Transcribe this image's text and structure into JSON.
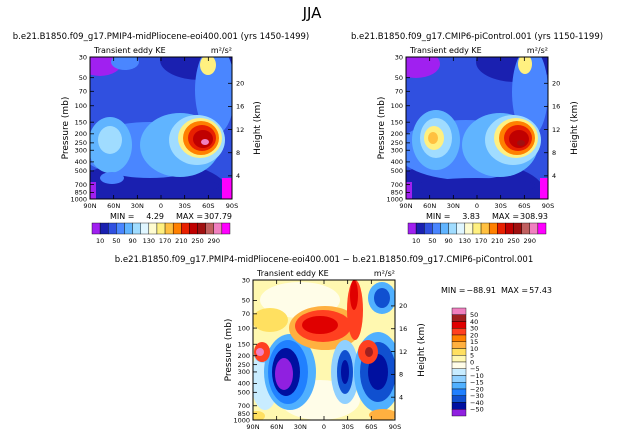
{
  "page": {
    "title": "JJA"
  },
  "chart_data": [
    {
      "type": "heatmap",
      "title": "b.e21.B1850.f09_g17.PMIP4-midPliocene-eoi400.001 (yrs 1450-1499)",
      "subtitle_left": "Transient eddy KE",
      "subtitle_right": "m²/s²",
      "xlabel": "",
      "ylabel": "Pressure (mb)",
      "ylabel_right": "Height (km)",
      "x_ticks": [
        "90N",
        "60N",
        "30N",
        "0",
        "30S",
        "60S",
        "90S"
      ],
      "y_ticks": [
        "30",
        "50",
        "70",
        "100",
        "150",
        "200",
        "250",
        "300",
        "400",
        "500",
        "700",
        "850",
        "1000"
      ],
      "y_right_ticks": [
        "20",
        "16",
        "12",
        "8",
        "4"
      ],
      "stats": {
        "min_label": "MIN =",
        "min": "4.29",
        "max_label": "MAX =",
        "max": "307.79"
      },
      "levels": [
        "10",
        "50",
        "90",
        "130",
        "170",
        "210",
        "250",
        "290"
      ],
      "palette": [
        "#a020f0",
        "#1a20b0",
        "#3050e0",
        "#4a86ff",
        "#60b4ff",
        "#a0dcff",
        "#e0f6ff",
        "#fffcd0",
        "#fff080",
        "#ffc040",
        "#ff8000",
        "#e82000",
        "#c00000",
        "#a01010",
        "#c06060",
        "#f080c0",
        "#ff00ff"
      ]
    },
    {
      "type": "heatmap",
      "title": "b.e21.B1850.f09_g17.CMIP6-piControl.001 (yrs 1150-1199)",
      "subtitle_left": "Transient eddy KE",
      "subtitle_right": "m²/s²",
      "xlabel": "",
      "ylabel": "Pressure (mb)",
      "ylabel_right": "Height (km)",
      "x_ticks": [
        "90N",
        "60N",
        "30N",
        "0",
        "30S",
        "60S",
        "90S"
      ],
      "y_ticks": [
        "30",
        "50",
        "70",
        "100",
        "150",
        "200",
        "250",
        "300",
        "400",
        "500",
        "700",
        "850",
        "1000"
      ],
      "y_right_ticks": [
        "20",
        "16",
        "12",
        "8",
        "4"
      ],
      "stats": {
        "min_label": "MIN =",
        "min": "3.83",
        "max_label": "MAX =",
        "max": "308.93"
      },
      "levels": [
        "10",
        "50",
        "90",
        "130",
        "170",
        "210",
        "250",
        "290"
      ],
      "palette": [
        "#a020f0",
        "#1a20b0",
        "#3050e0",
        "#4a86ff",
        "#60b4ff",
        "#a0dcff",
        "#e0f6ff",
        "#fffcd0",
        "#fff080",
        "#ffc040",
        "#ff8000",
        "#e82000",
        "#c00000",
        "#a01010",
        "#c06060",
        "#f080c0",
        "#ff00ff"
      ]
    },
    {
      "type": "heatmap",
      "title": "b.e21.B1850.f09_g17.PMIP4-midPliocene-eoi400.001 − b.e21.B1850.f09_g17.CMIP6-piControl.001",
      "subtitle_left": "Transient eddy KE",
      "subtitle_right": "m²/s²",
      "xlabel": "",
      "ylabel": "Pressure (mb)",
      "ylabel_right": "Height (km)",
      "x_ticks": [
        "90N",
        "60N",
        "30N",
        "0",
        "30S",
        "60S",
        "90S"
      ],
      "y_ticks": [
        "30",
        "50",
        "70",
        "100",
        "150",
        "200",
        "250",
        "300",
        "400",
        "500",
        "700",
        "850",
        "1000"
      ],
      "y_right_ticks": [
        "20",
        "16",
        "12",
        "8",
        "4"
      ],
      "stats": {
        "min_label": "MIN =",
        "min": "−88.91",
        "max_label": "MAX =",
        "max": "57.43"
      },
      "levels": [
        "50",
        "40",
        "30",
        "20",
        "15",
        "10",
        "5",
        "0",
        "−5",
        "−10",
        "−15",
        "−20",
        "−30",
        "−40",
        "−50"
      ],
      "palette": [
        "#f080c0",
        "#a02020",
        "#e00000",
        "#ff4020",
        "#ff8000",
        "#ffb040",
        "#ffe060",
        "#fff8b0",
        "#fffde8",
        "#c8ecff",
        "#90d0ff",
        "#50b0ff",
        "#2080ff",
        "#1050d0",
        "#0010a0",
        "#9020e0"
      ]
    }
  ]
}
